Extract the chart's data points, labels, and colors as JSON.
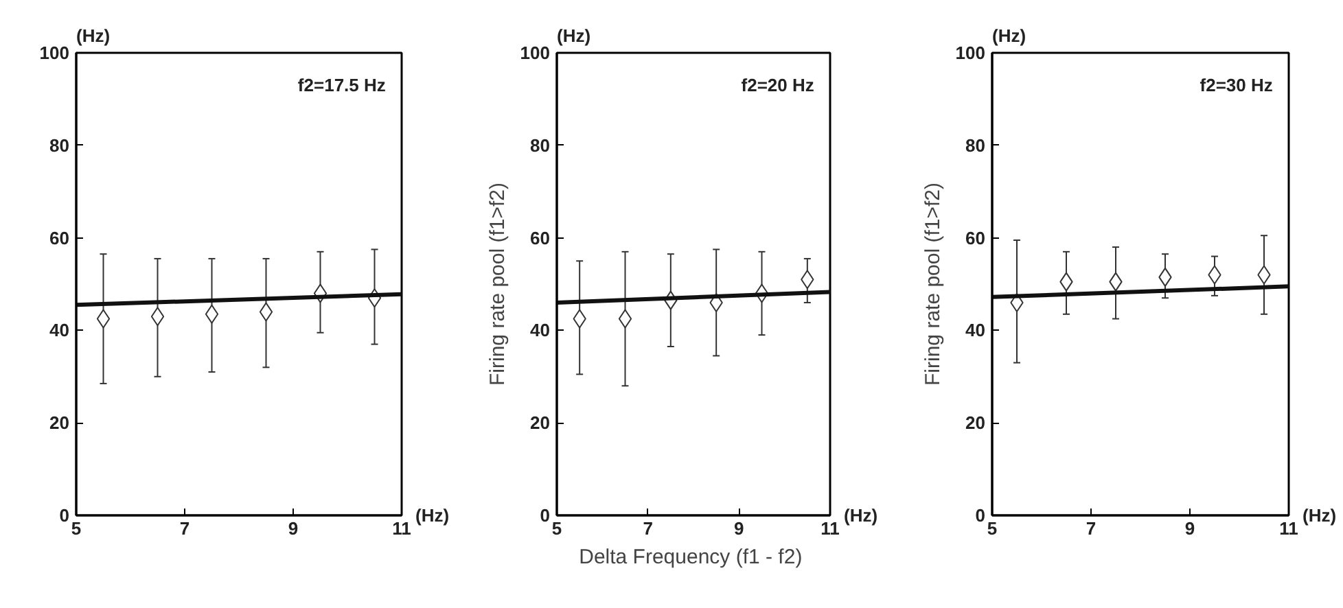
{
  "chart_data": [
    {
      "type": "scatter",
      "annotations": [
        "f2=17.5  Hz",
        "(Hz)",
        "(Hz)"
      ],
      "xlim": [
        5,
        11
      ],
      "ylim": [
        0,
        100
      ],
      "xticks": [
        5,
        7,
        9,
        11
      ],
      "yticks": [
        0,
        20,
        40,
        60,
        80,
        100
      ],
      "marker": "diamond",
      "grid": false,
      "series": [
        {
          "color": "#333333",
          "x": [
            5.5,
            6.5,
            7.5,
            8.5,
            9.5,
            10.5
          ],
          "values": [
            42.5,
            43,
            43.5,
            44,
            48,
            47
          ],
          "errors": [
            [
              28.5,
              56.5
            ],
            [
              30,
              55.5
            ],
            [
              31,
              55.5
            ],
            [
              32,
              55.5
            ],
            [
              39.5,
              57
            ],
            [
              37,
              57.5
            ]
          ]
        },
        {
          "type": "line",
          "marker": "none",
          "color": "#111111",
          "x": [
            5,
            11
          ],
          "values": [
            45.5,
            47.8
          ]
        }
      ]
    },
    {
      "type": "scatter",
      "xlabel": "Delta Frequency  (f1 - f2)",
      "ylabel": "Firing rate pool (f1>f2)",
      "annotations": [
        "f2=20  Hz",
        "(Hz)",
        "(Hz)"
      ],
      "xlim": [
        5,
        11
      ],
      "ylim": [
        0,
        100
      ],
      "xticks": [
        5,
        7,
        9,
        11
      ],
      "yticks": [
        0,
        20,
        40,
        60,
        80,
        100
      ],
      "marker": "diamond",
      "grid": false,
      "series": [
        {
          "color": "#333333",
          "x": [
            5.5,
            6.5,
            7.5,
            8.5,
            9.5,
            10.5
          ],
          "values": [
            42.5,
            42.5,
            46.5,
            46,
            48,
            51
          ],
          "errors": [
            [
              30.5,
              55
            ],
            [
              28,
              57
            ],
            [
              36.5,
              56.5
            ],
            [
              34.5,
              57.5
            ],
            [
              39,
              57
            ],
            [
              46,
              55.5
            ]
          ]
        },
        {
          "type": "line",
          "marker": "none",
          "color": "#111111",
          "x": [
            5,
            11
          ],
          "values": [
            46,
            48.3
          ]
        }
      ]
    },
    {
      "type": "scatter",
      "ylabel": "Firing rate pool (f1>f2)",
      "annotations": [
        "f2=30  Hz",
        "(Hz)",
        "(Hz)"
      ],
      "xlim": [
        5,
        11
      ],
      "ylim": [
        0,
        100
      ],
      "xticks": [
        5,
        7,
        9,
        11
      ],
      "yticks": [
        0,
        20,
        40,
        60,
        80,
        100
      ],
      "marker": "diamond",
      "grid": false,
      "series": [
        {
          "color": "#333333",
          "x": [
            5.5,
            6.5,
            7.5,
            8.5,
            9.5,
            10.5
          ],
          "values": [
            46,
            50.5,
            50.5,
            51.5,
            52,
            52
          ],
          "errors": [
            [
              33,
              59.5
            ],
            [
              43.5,
              57
            ],
            [
              42.5,
              58
            ],
            [
              47,
              56.5
            ],
            [
              47.5,
              56
            ],
            [
              43.5,
              60.5
            ]
          ]
        },
        {
          "type": "line",
          "marker": "none",
          "color": "#111111",
          "x": [
            5,
            11
          ],
          "values": [
            47.2,
            49.5
          ]
        }
      ]
    }
  ]
}
